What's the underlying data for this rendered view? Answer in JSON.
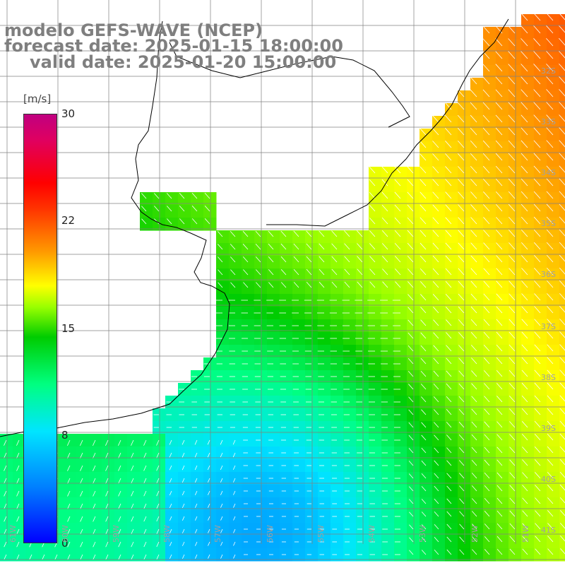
{
  "header": {
    "line1": "modelo GEFS-WAVE (NCEP)",
    "line2": "forecast date: 2025-01-15 18:00:00",
    "line3": "valid date: 2025-01-20 15:00:00"
  },
  "colorbar": {
    "units": "[m/s]",
    "min": 0,
    "max": 30,
    "ticks": [
      "30",
      "22",
      "15",
      "8",
      "0"
    ],
    "tick_values": [
      30,
      22,
      15,
      8,
      0
    ],
    "colors": [
      "#0000ff",
      "#0080ff",
      "#00e5ff",
      "#00ff80",
      "#00cc00",
      "#99ff00",
      "#ffff00",
      "#ff9900",
      "#ff3300",
      "#ff0000",
      "#c00080"
    ]
  },
  "axes": {
    "lat_labels": [
      "32S",
      "33S",
      "34S",
      "35S",
      "36S",
      "37S",
      "38S",
      "39S",
      "40S",
      "41S"
    ],
    "lon_labels": [
      "61W",
      "60W",
      "59W",
      "58W",
      "57W",
      "56W",
      "55W",
      "54W",
      "53W",
      "52W",
      "51W"
    ]
  },
  "colors": {
    "land": "#ffffff",
    "grid": "#808080",
    "coast": "#000000",
    "arrows": "#ffffff",
    "title_text": "#7f7f7f"
  }
}
